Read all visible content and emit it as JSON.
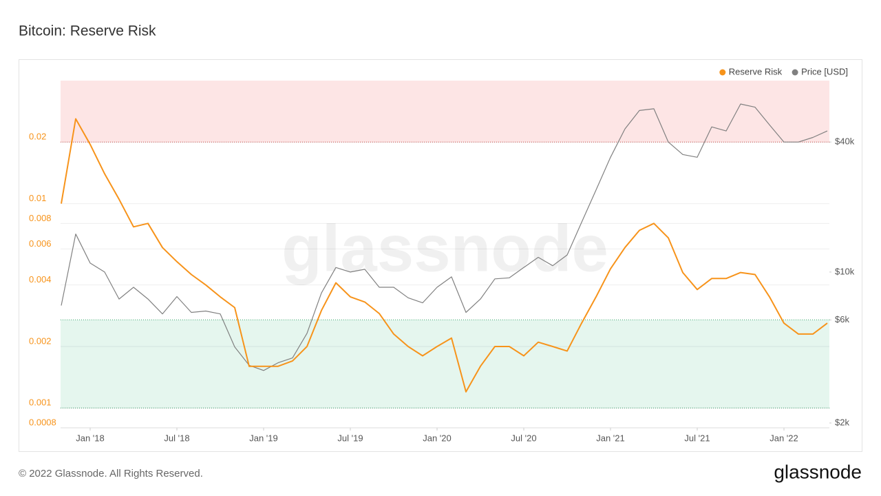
{
  "chart_data": {
    "type": "line",
    "title": "Bitcoin: Reserve Risk",
    "watermark": "glassnode",
    "x": [
      "2017-11",
      "2017-12",
      "2018-01",
      "2018-02",
      "2018-03",
      "2018-04",
      "2018-05",
      "2018-06",
      "2018-07",
      "2018-08",
      "2018-09",
      "2018-10",
      "2018-11",
      "2018-12",
      "2019-01",
      "2019-02",
      "2019-03",
      "2019-04",
      "2019-05",
      "2019-06",
      "2019-07",
      "2019-08",
      "2019-09",
      "2019-10",
      "2019-11",
      "2019-12",
      "2020-01",
      "2020-02",
      "2020-03",
      "2020-04",
      "2020-05",
      "2020-06",
      "2020-07",
      "2020-08",
      "2020-09",
      "2020-10",
      "2020-11",
      "2020-12",
      "2021-01",
      "2021-02",
      "2021-03",
      "2021-04",
      "2021-05",
      "2021-06",
      "2021-07",
      "2021-08",
      "2021-09",
      "2021-10",
      "2021-11",
      "2021-12",
      "2022-01",
      "2022-02",
      "2022-03",
      "2022-04"
    ],
    "xlim": [
      "2017-11",
      "2022-04"
    ],
    "xticks": [
      {
        "value": "2018-01",
        "label": "Jan '18"
      },
      {
        "value": "2018-07",
        "label": "Jul '18"
      },
      {
        "value": "2019-01",
        "label": "Jan '19"
      },
      {
        "value": "2019-07",
        "label": "Jul '19"
      },
      {
        "value": "2020-01",
        "label": "Jan '20"
      },
      {
        "value": "2020-07",
        "label": "Jul '20"
      },
      {
        "value": "2021-01",
        "label": "Jan '21"
      },
      {
        "value": "2021-07",
        "label": "Jul '21"
      },
      {
        "value": "2022-01",
        "label": "Jan '22"
      }
    ],
    "ylim": [
      0.0008,
      0.04
    ],
    "ylog": true,
    "yticks": [
      0.02,
      0.01,
      0.008,
      0.006,
      0.004,
      0.002,
      0.001,
      0.0008
    ],
    "y2lim": [
      1900,
      77000
    ],
    "y2log": true,
    "y2ticks": [
      {
        "value": 40000,
        "label": "$40k"
      },
      {
        "value": 10000,
        "label": "$10k"
      },
      {
        "value": 6000,
        "label": "$6k"
      },
      {
        "value": 2000,
        "label": "$2k"
      }
    ],
    "grid": true,
    "legend": "top-right",
    "zones": [
      {
        "from": 0.02,
        "to": 0.04,
        "color": "#fde5e5",
        "line_color": "#d9534f"
      },
      {
        "from": 0.001,
        "to": 0.0027,
        "color": "#e5f6ee",
        "line_color": "#3aa76d"
      }
    ],
    "series": [
      {
        "name": "Reserve Risk",
        "color": "#f7931a",
        "values": [
          0.01,
          0.026,
          0.0195,
          0.014,
          0.0105,
          0.0077,
          0.008,
          0.0061,
          0.0052,
          0.0045,
          0.004,
          0.0035,
          0.0031,
          0.0016,
          0.0016,
          0.0016,
          0.0017,
          0.002,
          0.003,
          0.0041,
          0.0035,
          0.0033,
          0.0029,
          0.0023,
          0.002,
          0.0018,
          0.002,
          0.0022,
          0.0012,
          0.0016,
          0.002,
          0.002,
          0.0018,
          0.0021,
          0.002,
          0.0019,
          0.0026,
          0.0035,
          0.0048,
          0.0061,
          0.0074,
          0.008,
          0.0068,
          0.0046,
          0.0038,
          0.0043,
          0.0043,
          0.0046,
          0.0045,
          0.0035,
          0.0026,
          0.0023,
          0.0023,
          0.0026
        ]
      },
      {
        "name": "Price [USD]",
        "color": "#808080",
        "axis": "y2",
        "values": [
          7000,
          15000,
          11000,
          10000,
          7500,
          8500,
          7500,
          6400,
          7700,
          6500,
          6600,
          6400,
          4500,
          3700,
          3500,
          3800,
          4000,
          5200,
          8000,
          10500,
          10000,
          10300,
          8500,
          8500,
          7600,
          7200,
          8500,
          9500,
          6500,
          7500,
          9300,
          9400,
          10500,
          11700,
          10700,
          12000,
          17000,
          24000,
          34000,
          46000,
          56000,
          57000,
          40000,
          35000,
          34000,
          47000,
          45000,
          60000,
          58000,
          48000,
          40000,
          40000,
          42000,
          45000
        ]
      }
    ]
  },
  "footer": {
    "copyright": "© 2022 Glassnode. All Rights Reserved.",
    "logo": "glassnode"
  }
}
